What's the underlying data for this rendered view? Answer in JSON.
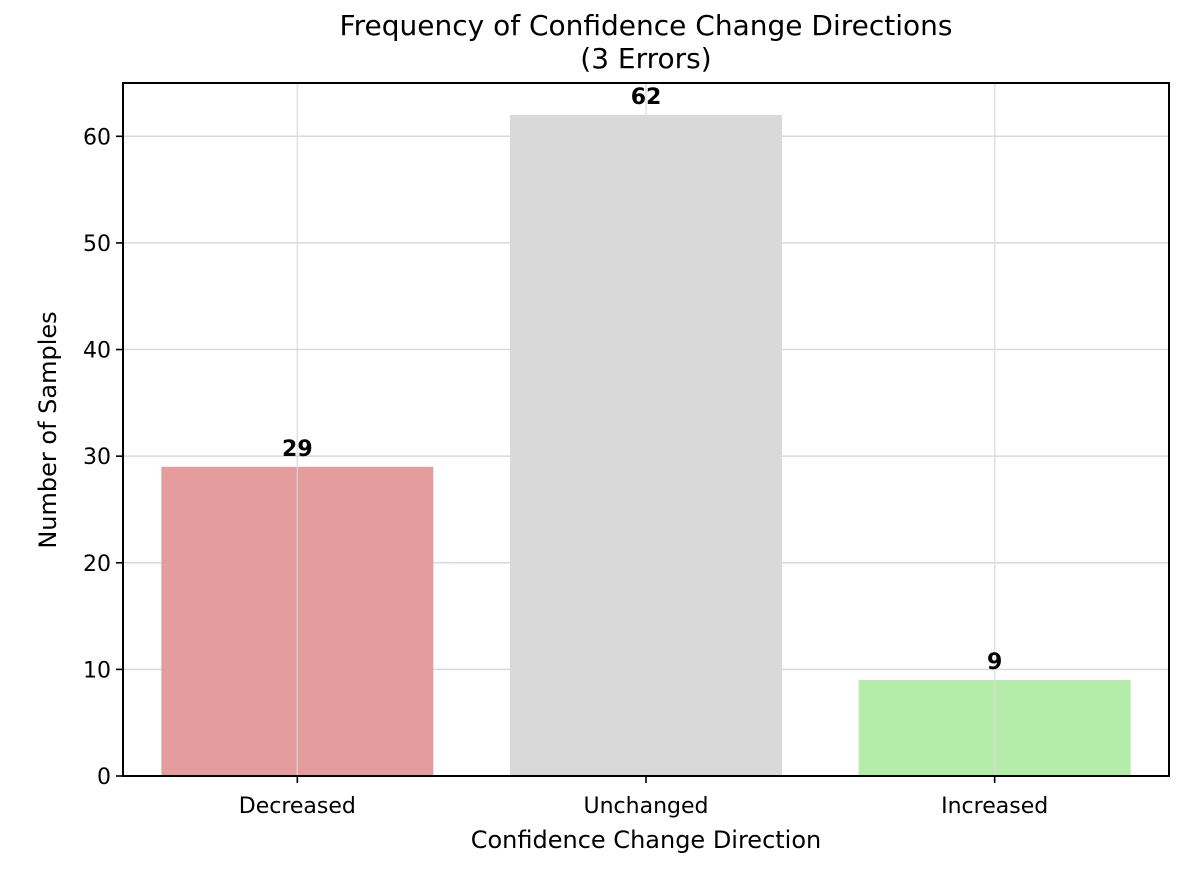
{
  "chart_data": {
    "type": "bar",
    "title": "Frequency of Confidence Change Directions",
    "subtitle": "(3 Errors)",
    "xlabel": "Confidence Change Direction",
    "ylabel": "Number of Samples",
    "categories": [
      "Decreased",
      "Unchanged",
      "Increased"
    ],
    "values": [
      29,
      62,
      9
    ],
    "colors": [
      "#e59c9c",
      "#d9d9d9",
      "#b5ecaa"
    ],
    "ylim": [
      0,
      65
    ],
    "yticks": [
      0,
      10,
      20,
      30,
      40,
      50,
      60
    ],
    "grid": true,
    "legend": "none"
  }
}
